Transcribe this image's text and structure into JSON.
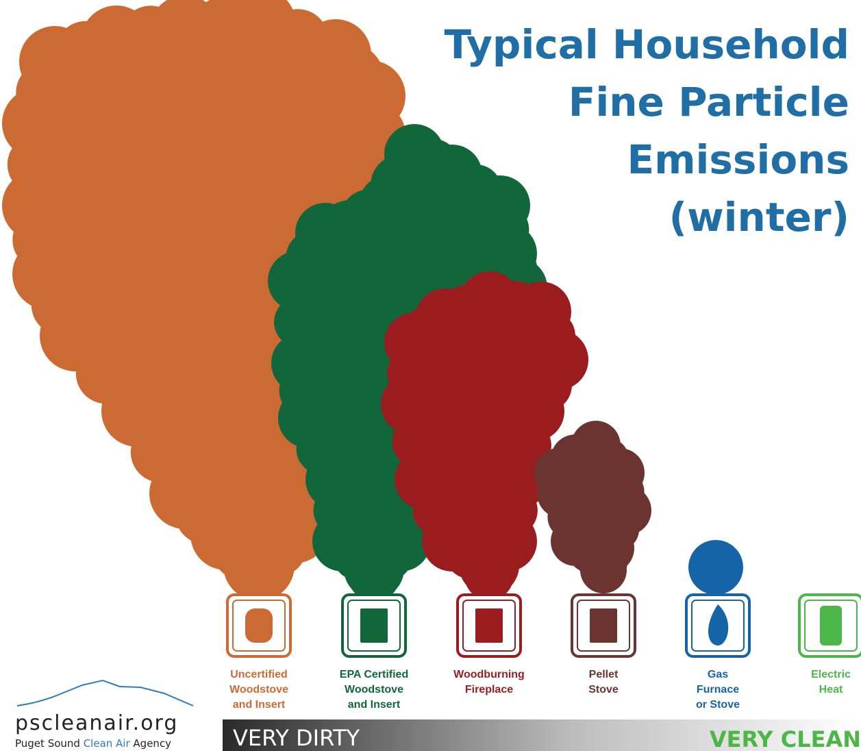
{
  "title": [
    "Typical Household",
    "Fine Particle",
    "Emissions",
    "(winter)"
  ],
  "items": [
    {
      "label": [
        "Uncertified",
        "Woodstove",
        "and Insert"
      ],
      "color": "#cc6a33"
    },
    {
      "label": [
        "EPA Certified",
        "Woodstove",
        "and Insert"
      ],
      "color": "#11663a"
    },
    {
      "label": [
        "Woodburning",
        "Fireplace"
      ],
      "color": "#9b1c1f"
    },
    {
      "label": [
        "Pellet",
        "Stove"
      ],
      "color": "#6b3430"
    },
    {
      "label": [
        "Gas",
        "Furnace",
        "or Stove"
      ],
      "color": "#1564a8"
    },
    {
      "label": [
        "Electric",
        "Heat"
      ],
      "color": "#4cb648"
    }
  ],
  "scale": {
    "left": "VERY DIRTY",
    "right": "VERY CLEAN"
  },
  "logo": {
    "site": "pscleanair.org",
    "agency_start": "Puget Sound",
    "agency_highlight": "Clean Air",
    "agency_end": "Agency"
  }
}
